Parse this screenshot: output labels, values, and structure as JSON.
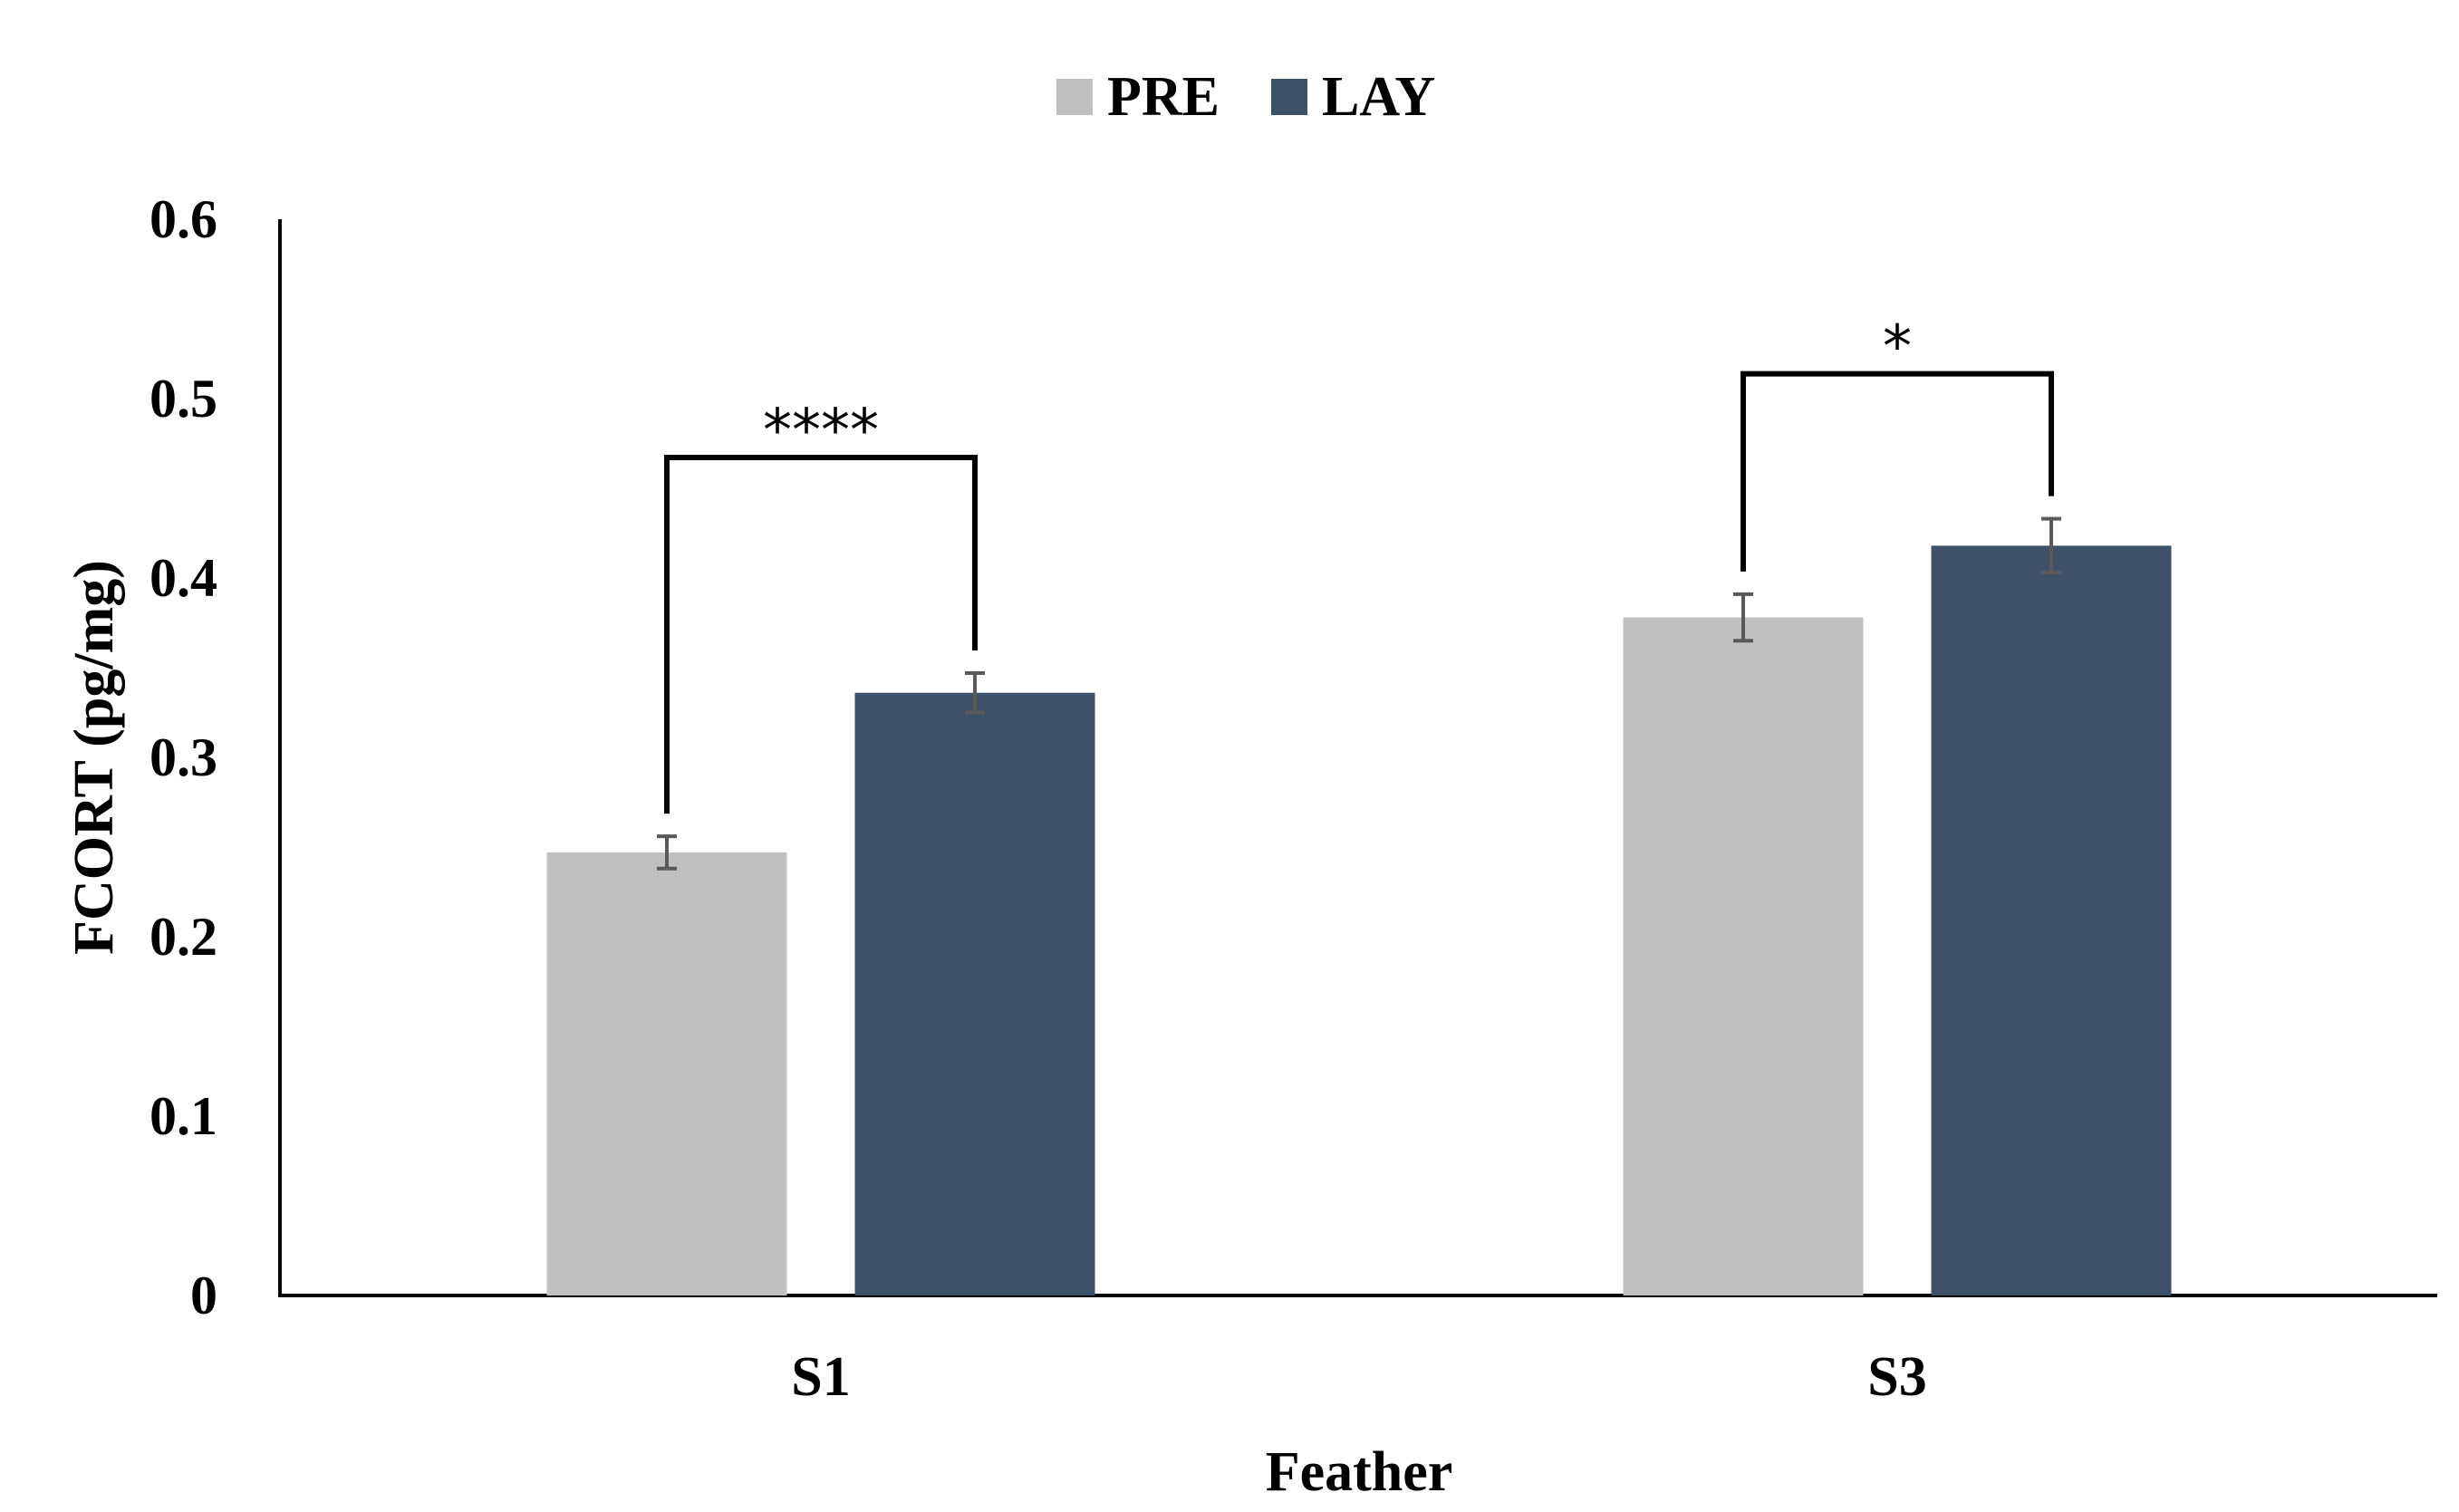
{
  "chart_data": {
    "type": "bar",
    "categories": [
      "S1",
      "S3"
    ],
    "series": [
      {
        "name": "PRE",
        "values": [
          0.247,
          0.378
        ],
        "errors": [
          0.009,
          0.013
        ],
        "color": "#c0c0c0"
      },
      {
        "name": "LAY",
        "values": [
          0.336,
          0.418
        ],
        "errors": [
          0.011,
          0.015
        ],
        "color": "#3d5168"
      }
    ],
    "xlabel": "Feather",
    "ylabel": "FCORT (pg/mg)",
    "ylim": [
      0,
      0.6
    ],
    "yticks": [
      "0",
      "0.1",
      "0.2",
      "0.3",
      "0.4",
      "0.5",
      "0.6"
    ],
    "legend_position": "top-center",
    "grid": false,
    "annotations": [
      {
        "category": "S1",
        "label": "****"
      },
      {
        "category": "S3",
        "label": "*"
      }
    ]
  }
}
